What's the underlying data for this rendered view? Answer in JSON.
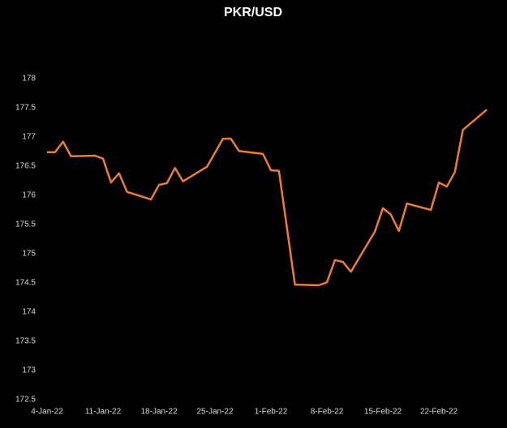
{
  "chart_data": {
    "type": "line",
    "title": "PKR/USD",
    "x": [
      "4-Jan-22",
      "5-Jan-22",
      "6-Jan-22",
      "7-Jan-22",
      "10-Jan-22",
      "11-Jan-22",
      "12-Jan-22",
      "13-Jan-22",
      "14-Jan-22",
      "17-Jan-22",
      "18-Jan-22",
      "19-Jan-22",
      "20-Jan-22",
      "21-Jan-22",
      "24-Jan-22",
      "26-Jan-22",
      "27-Jan-22",
      "28-Jan-22",
      "31-Jan-22",
      "1-Feb-22",
      "2-Feb-22",
      "4-Feb-22",
      "7-Feb-22",
      "8-Feb-22",
      "9-Feb-22",
      "10-Feb-22",
      "11-Feb-22",
      "14-Feb-22",
      "15-Feb-22",
      "16-Feb-22",
      "17-Feb-22",
      "18-Feb-22",
      "21-Feb-22",
      "22-Feb-22",
      "23-Feb-22",
      "24-Feb-22",
      "25-Feb-22",
      "28-Feb-22"
    ],
    "series": [
      {
        "name": "PKR/USD",
        "color": "#ed7d31",
        "values": [
          176.74,
          176.74,
          176.92,
          176.67,
          176.68,
          176.63,
          176.22,
          176.38,
          176.06,
          175.93,
          176.18,
          176.21,
          176.47,
          176.24,
          176.49,
          176.97,
          176.97,
          176.76,
          176.71,
          176.43,
          176.42,
          174.47,
          174.46,
          174.51,
          174.89,
          174.86,
          174.69,
          175.38,
          175.78,
          175.67,
          175.39,
          175.86,
          175.75,
          176.22,
          176.15,
          176.4,
          177.12,
          177.47
        ]
      }
    ],
    "xlim": [
      "4-Jan-22",
      "1-Mar-22"
    ],
    "xticks": [
      "4-Jan-22",
      "11-Jan-22",
      "18-Jan-22",
      "25-Jan-22",
      "1-Feb-22",
      "8-Feb-22",
      "15-Feb-22",
      "22-Feb-22"
    ],
    "ylim": [
      172.5,
      178
    ],
    "yticks": [
      172.5,
      173,
      173.5,
      174,
      174.5,
      175,
      175.5,
      176,
      176.5,
      177,
      177.5,
      178
    ]
  }
}
